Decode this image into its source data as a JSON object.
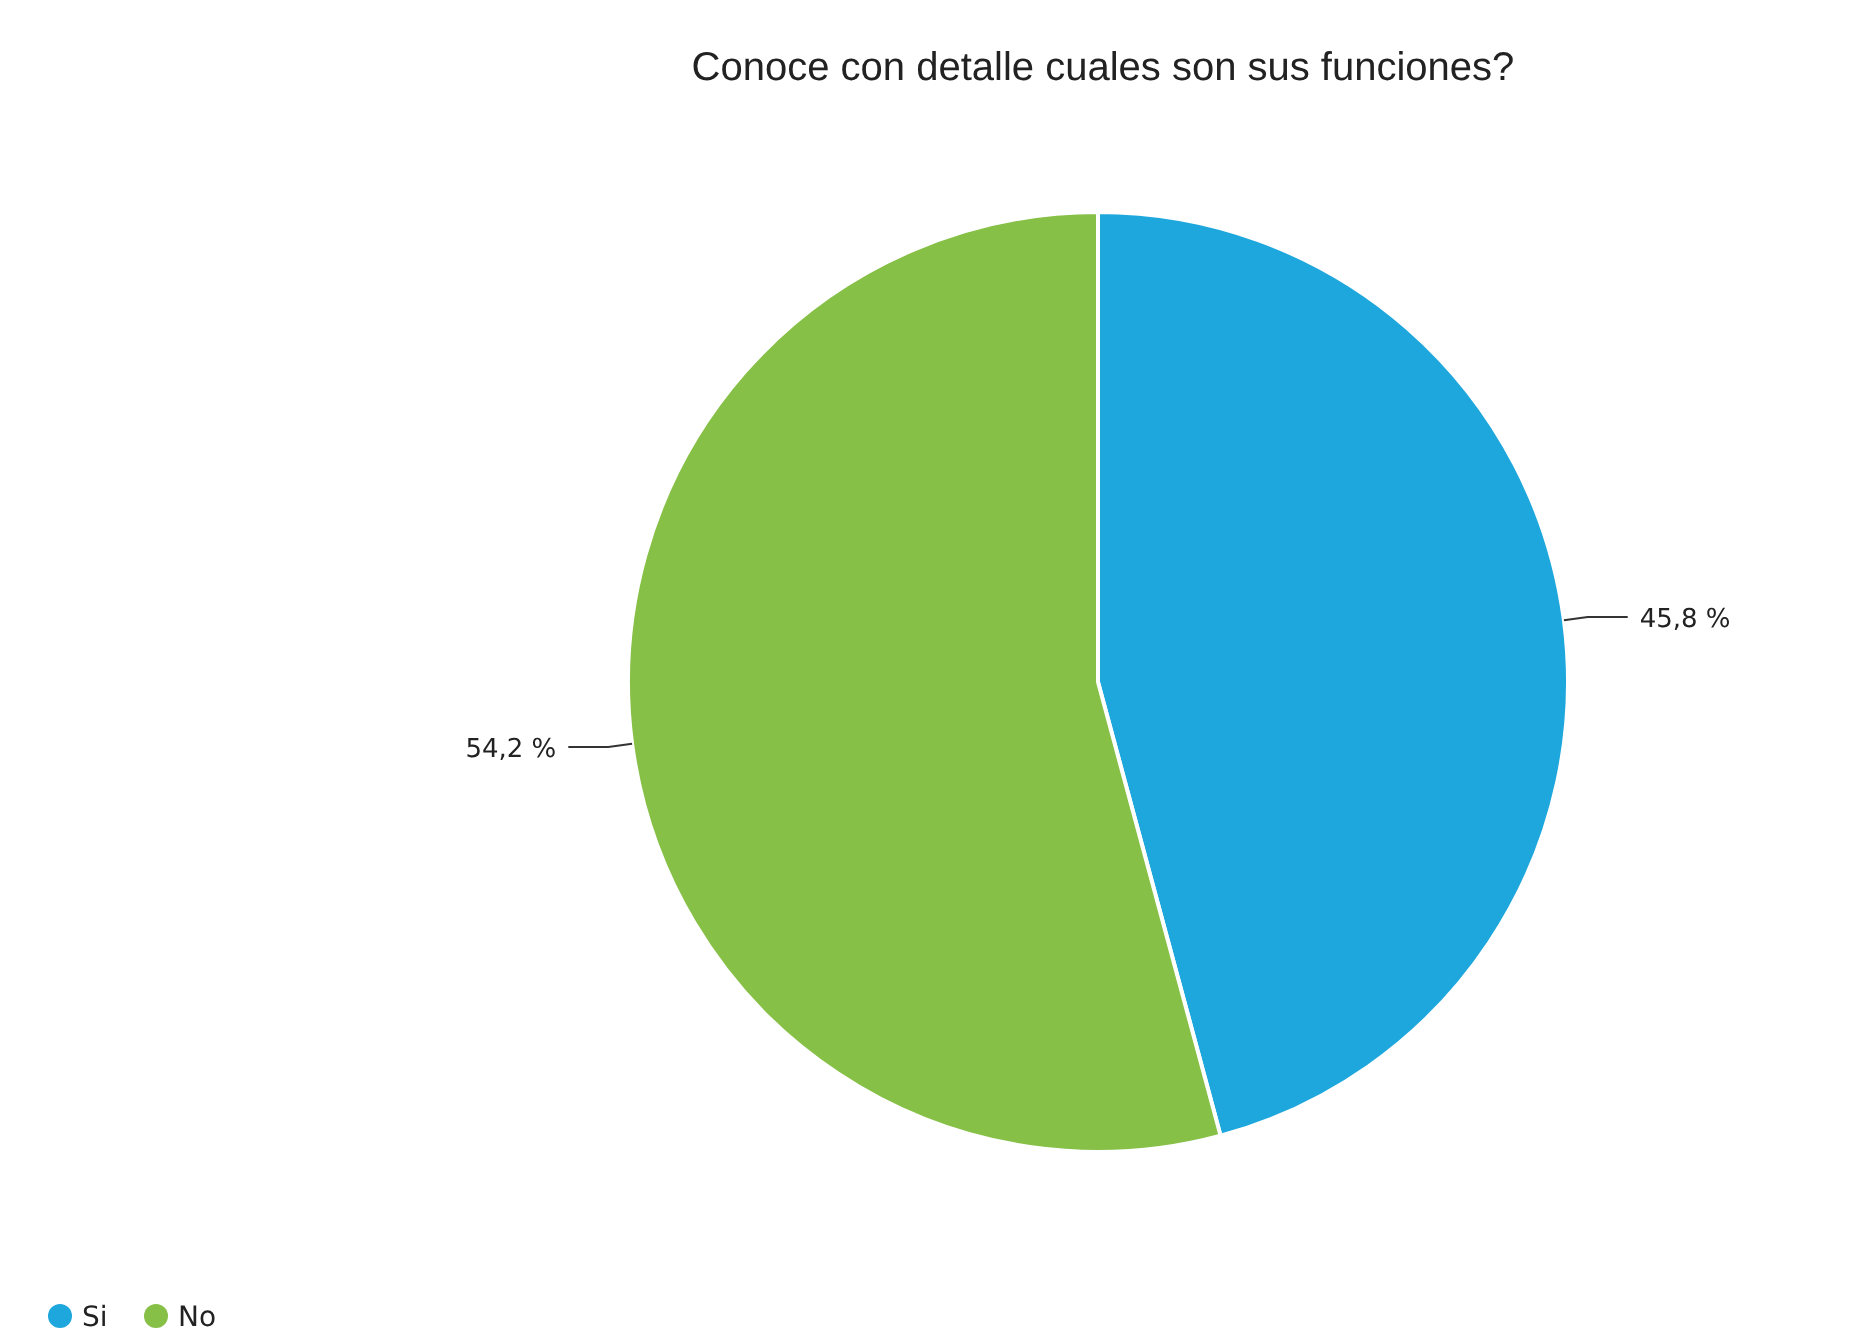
{
  "chart_data": {
    "type": "pie",
    "title": "Conoce con detalle cuales son sus funciones?",
    "categories": [
      "Si",
      "No"
    ],
    "values": [
      45.8,
      54.2
    ],
    "colors": [
      "#1ea7dd",
      "#86c046"
    ],
    "value_labels": [
      "45,8 %",
      "54,2 %"
    ],
    "legend": "bottom left"
  }
}
